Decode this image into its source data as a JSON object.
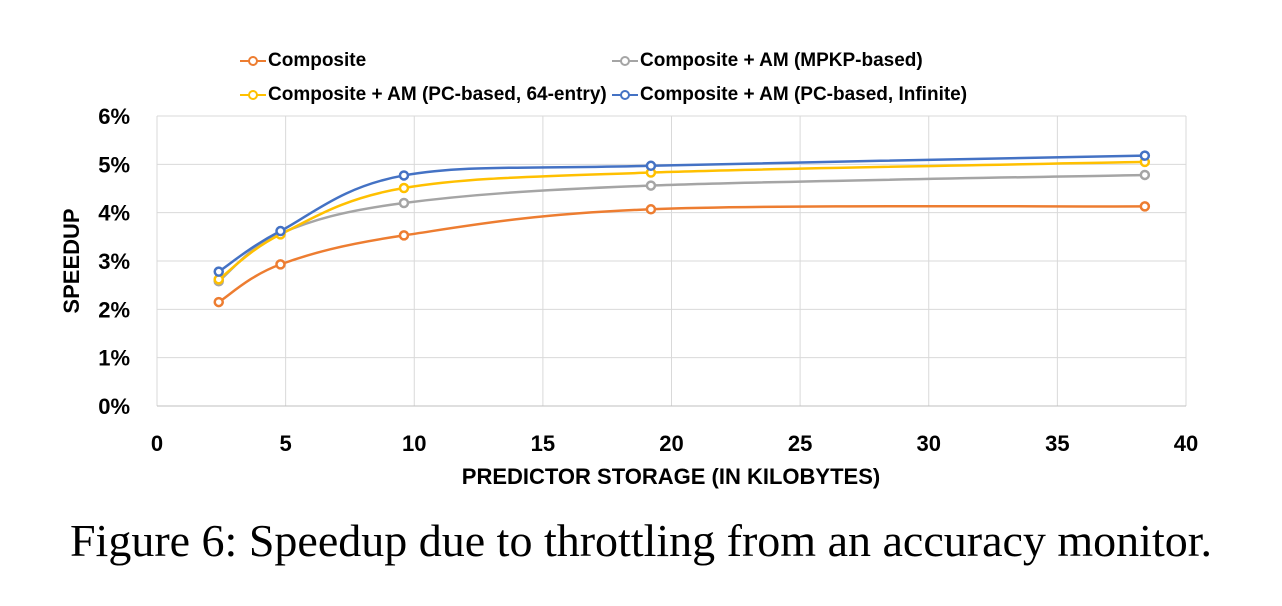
{
  "chart_data": {
    "type": "line",
    "xlabel": "PREDICTOR STORAGE (IN KILOBYTES)",
    "ylabel": "SPEEDUP",
    "xlim": [
      0,
      40
    ],
    "ylim": [
      0,
      6
    ],
    "x_ticks": [
      "0",
      "5",
      "10",
      "15",
      "20",
      "25",
      "30",
      "35",
      "40"
    ],
    "y_ticks": [
      "0%",
      "1%",
      "2%",
      "3%",
      "4%",
      "5%",
      "6%"
    ],
    "grid": true,
    "legend_position": "top",
    "x": [
      2.4,
      4.8,
      9.6,
      19.2,
      38.4
    ],
    "series": [
      {
        "name": "Composite",
        "color": "#ed7d31",
        "values": [
          2.15,
          2.93,
          3.53,
          4.07,
          4.13
        ]
      },
      {
        "name": "Composite + AM (MPKP-based)",
        "color": "#a5a5a5",
        "values": [
          2.58,
          3.57,
          4.2,
          4.56,
          4.78
        ]
      },
      {
        "name": "Composite + AM (PC-based, 64-entry)",
        "color": "#ffc000",
        "values": [
          2.62,
          3.55,
          4.51,
          4.83,
          5.05
        ]
      },
      {
        "name": "Composite + AM (PC-based, Infinite)",
        "color": "#4472c4",
        "values": [
          2.78,
          3.62,
          4.77,
          4.97,
          5.18
        ]
      }
    ]
  },
  "caption": "Figure 6: Speedup due to throttling from an accuracy monitor."
}
